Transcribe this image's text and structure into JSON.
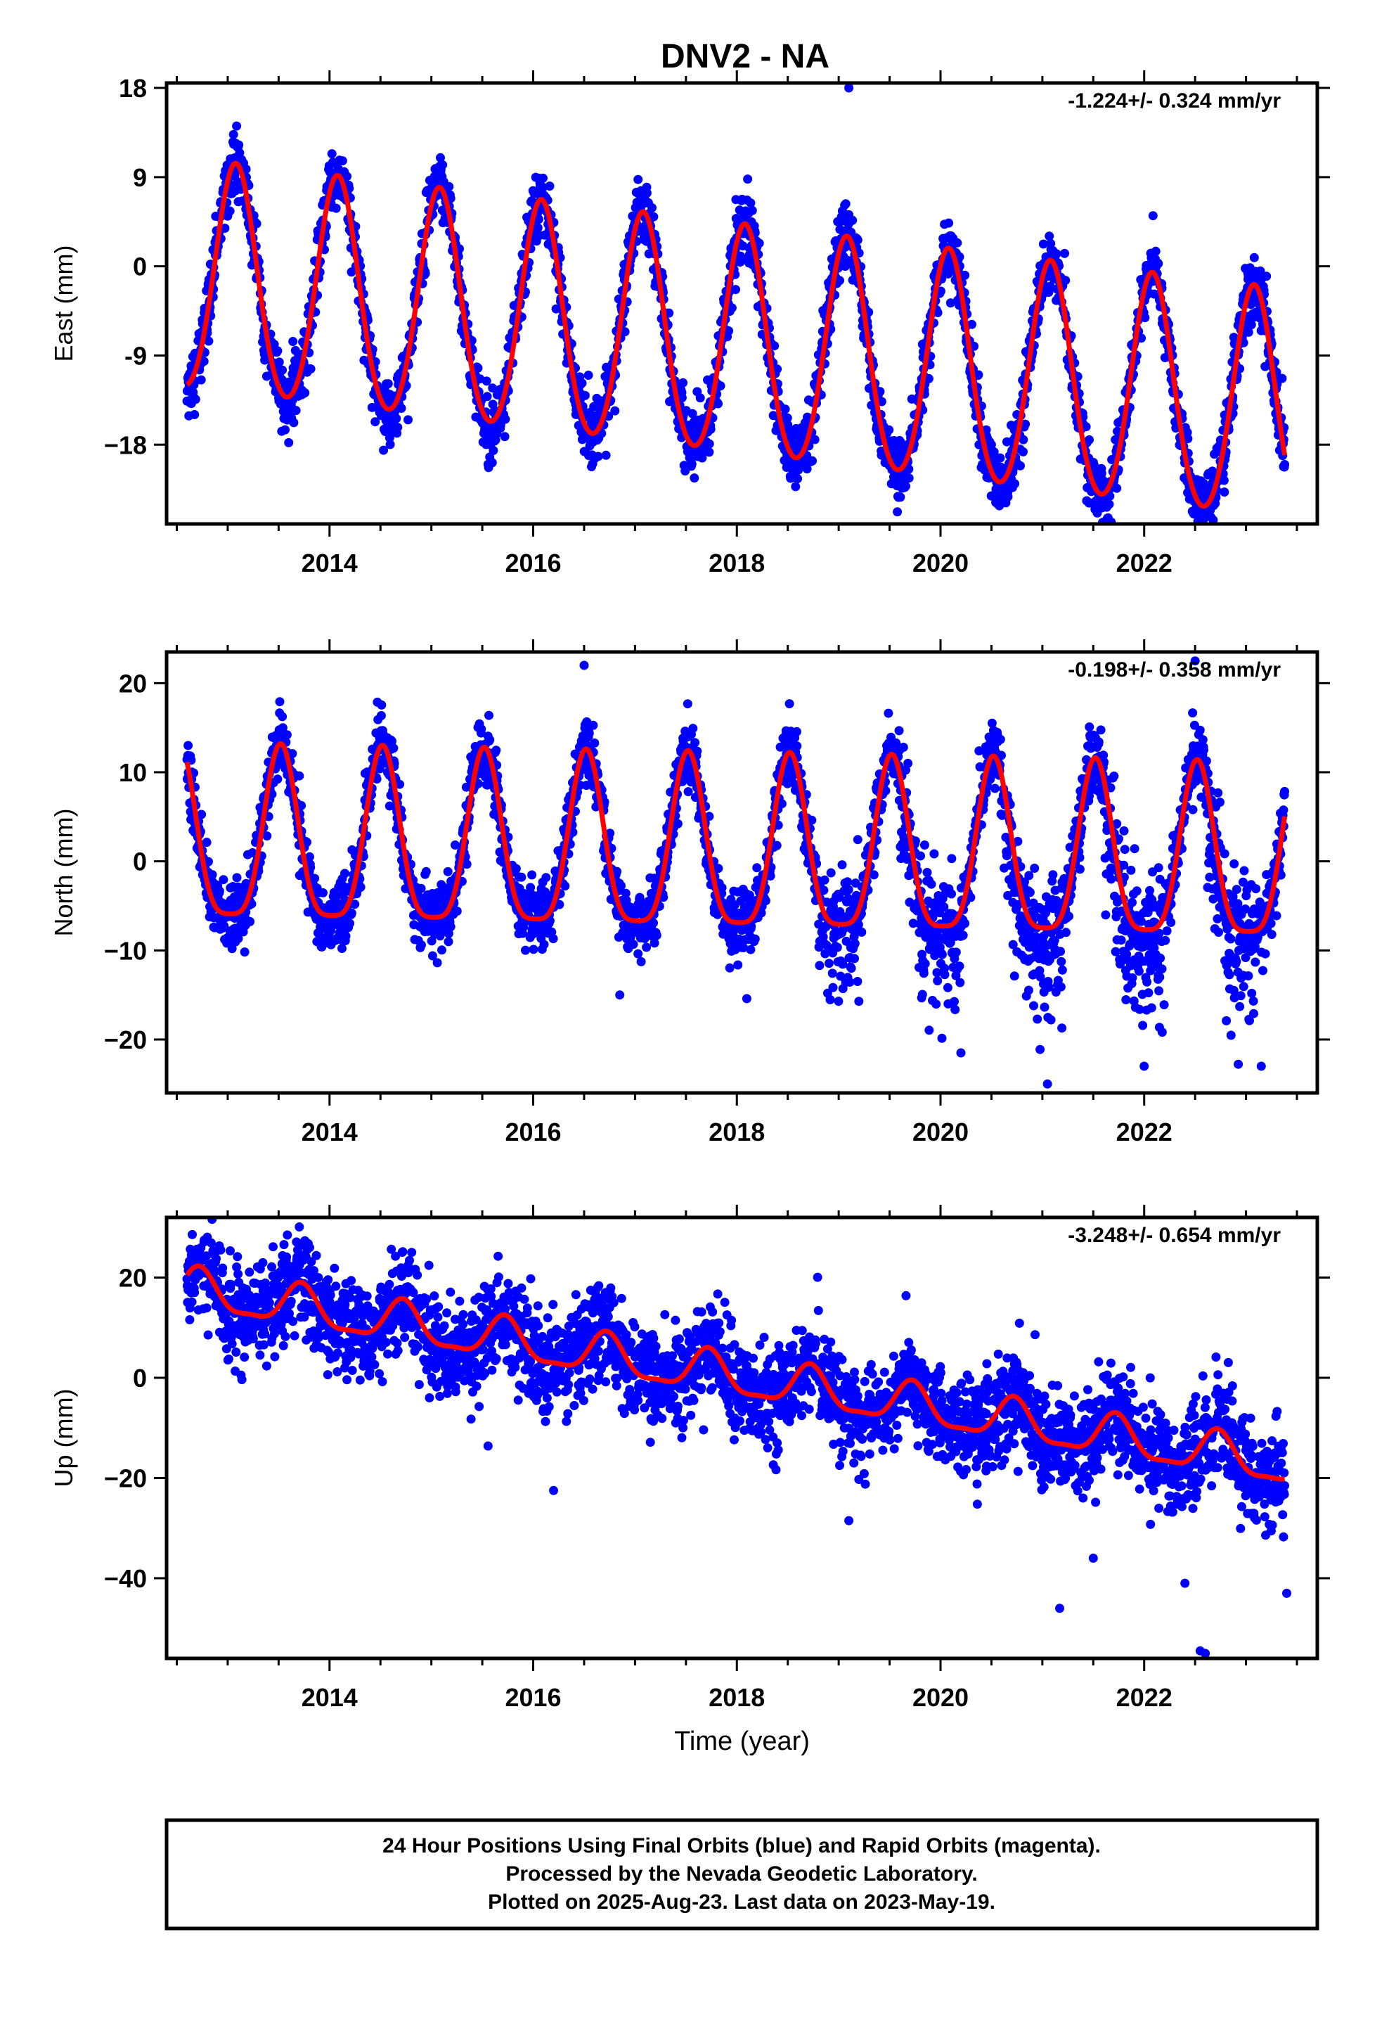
{
  "page": {
    "title": "DNV2 - NA",
    "footer": [
      "24 Hour Positions Using Final Orbits (blue) and Rapid Orbits (magenta).",
      "Processed by the Nevada Geodetic Laboratory.",
      "Plotted on 2025-Aug-23. Last data on 2023-May-19."
    ]
  },
  "colors": {
    "points": "#0000ff",
    "model": "#ff0000",
    "frame": "#000000"
  },
  "chart_data": [
    {
      "type": "scatter",
      "name": "east",
      "ylabel": "East (mm)",
      "xlabel": "",
      "rate_label": "-1.224+/- 0.324 mm/yr",
      "xlim": [
        2012.4,
        2023.7
      ],
      "ylim": [
        -26,
        18.5
      ],
      "xticks": [
        2014,
        2016,
        2018,
        2020,
        2022
      ],
      "xtick_labels": [
        "2014",
        "2016",
        "2018",
        "2020",
        "2022"
      ],
      "yticks": [
        18,
        9,
        0,
        -9,
        -18
      ],
      "ytick_labels": [
        "18",
        "9",
        "0",
        "-9",
        "−18"
      ],
      "data_start": 2012.6,
      "data_end": 2023.38,
      "fit": {
        "offset": -1.5,
        "rate": -1.224,
        "ref_epoch": 2012.6,
        "annual_amp": 11.5,
        "annual_peak": 2013.08,
        "semiannual_amp": 1.0,
        "semiannual_peak": 2013.08
      },
      "scatter_noise": 1.6,
      "season_bias": [],
      "outliers": [
        {
          "x": 2019.1,
          "y": 18.0
        },
        {
          "x": 2022.57,
          "y": -25.0
        },
        {
          "x": 2021.45,
          "y": -20.5
        },
        {
          "x": 2016.5,
          "y": -17.0
        },
        {
          "x": 2020.5,
          "y": -18.0
        },
        {
          "x": 2018.5,
          "y": -16.0
        },
        {
          "x": 2023.38,
          "y": -20.0
        }
      ]
    },
    {
      "type": "scatter",
      "name": "north",
      "ylabel": "North (mm)",
      "xlabel": "",
      "rate_label": "-0.198+/- 0.358 mm/yr",
      "xlim": [
        2012.4,
        2023.7
      ],
      "ylim": [
        -26,
        23.5
      ],
      "xticks": [
        2014,
        2016,
        2018,
        2020,
        2022
      ],
      "xtick_labels": [
        "2014",
        "2016",
        "2018",
        "2020",
        "2022"
      ],
      "yticks": [
        20,
        10,
        0,
        -10,
        -20
      ],
      "ytick_labels": [
        "20",
        "10",
        "0",
        "−10",
        "−20"
      ],
      "data_start": 2012.6,
      "data_end": 2023.38,
      "fit": {
        "offset": 1.5,
        "rate": -0.198,
        "ref_epoch": 2012.6,
        "annual_amp": 9.6,
        "annual_peak": 2012.52,
        "semiannual_amp": 2.3,
        "semiannual_peak": 2012.52
      },
      "scatter_noise": 1.8,
      "season_bias": [
        {
          "from": 2018.8,
          "to": 2023.4,
          "phase_start": 0.6,
          "phase_end": 1.2,
          "shift": -5.0,
          "extra_noise": 3.5
        }
      ],
      "outliers": [
        {
          "x": 2016.5,
          "y": 22.0
        },
        {
          "x": 2022.5,
          "y": 22.5
        },
        {
          "x": 2021.05,
          "y": -25.0
        },
        {
          "x": 2020.2,
          "y": -21.5
        },
        {
          "x": 2022.0,
          "y": -23.0
        },
        {
          "x": 2023.15,
          "y": -23.0
        },
        {
          "x": 2016.85,
          "y": -15.0
        }
      ]
    },
    {
      "type": "scatter",
      "name": "up",
      "ylabel": "Up (mm)",
      "xlabel": "Time (year)",
      "rate_label": "-3.248+/- 0.654 mm/yr",
      "xlim": [
        2012.4,
        2023.7
      ],
      "ylim": [
        -56,
        32
      ],
      "xticks": [
        2014,
        2016,
        2018,
        2020,
        2022
      ],
      "xtick_labels": [
        "2014",
        "2016",
        "2018",
        "2020",
        "2022"
      ],
      "yticks": [
        20,
        0,
        -20,
        -40
      ],
      "ytick_labels": [
        "20",
        "0",
        "−20",
        "−40"
      ],
      "data_start": 2012.6,
      "data_end": 2023.38,
      "fit": {
        "offset": 17.5,
        "rate": -3.248,
        "ref_epoch": 2012.6,
        "annual_amp": 4.0,
        "annual_peak": 2012.72,
        "semiannual_amp": 1.2,
        "semiannual_peak": 2012.72
      },
      "scatter_noise": 4.8,
      "season_bias": [],
      "outliers": [
        {
          "x": 2021.17,
          "y": -46.0
        },
        {
          "x": 2022.6,
          "y": -55.0
        },
        {
          "x": 2022.55,
          "y": -54.5
        },
        {
          "x": 2023.4,
          "y": -43.0
        },
        {
          "x": 2016.2,
          "y": -22.5
        },
        {
          "x": 2019.1,
          "y": -28.5
        },
        {
          "x": 2021.5,
          "y": -36.0
        },
        {
          "x": 2022.4,
          "y": -41.0
        }
      ]
    }
  ]
}
